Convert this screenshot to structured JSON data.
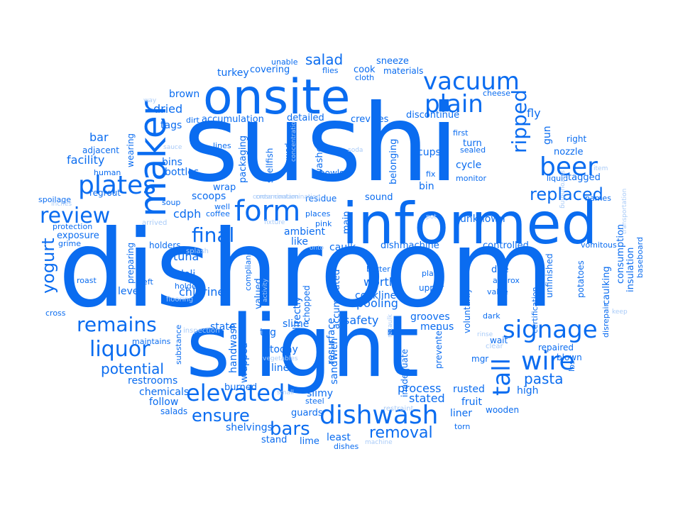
{
  "colors": {
    "primary": "#0a6cf0",
    "light": "#6aaaf6",
    "faint": "#a9cbf8"
  },
  "words": [
    "sushi",
    "dishroom",
    "slight",
    "informed",
    "onsite",
    "maker",
    "form",
    "beer",
    "plain",
    "vacuum",
    "plates",
    "review",
    "dishwash",
    "elevated",
    "signage",
    "wire",
    "liquor",
    "tall",
    "ripped",
    "remains",
    "replaced",
    "final",
    "bars",
    "ensure",
    "removal",
    "potential",
    "yogurt",
    "pasta",
    "salad",
    "dried",
    "tags",
    "bar",
    "facility",
    "bins",
    "bottles",
    "scoops",
    "cdph",
    "tuna",
    "deli",
    "chlorine",
    "level",
    "worth",
    "pooling",
    "cookline",
    "safety",
    "grooves",
    "menus",
    "today",
    "line",
    "process",
    "stated",
    "rusted",
    "fruit",
    "liner",
    "high",
    "wooden",
    "chemicals",
    "follow",
    "salads",
    "restrooms",
    "shelvings",
    "stand",
    "lime",
    "least",
    "dishes",
    "guards",
    "slimy",
    "steel",
    "burned",
    "handwash",
    "wrapped",
    "sandwich",
    "resurface",
    "tag",
    "slime",
    "state",
    "directly",
    "accumulated",
    "valued",
    "chopped",
    "ambient",
    "caulk",
    "like",
    "dishmachine",
    "controlled",
    "due",
    "approx",
    "valve",
    "upper",
    "plate",
    "better",
    "main",
    "places",
    "pink",
    "sound",
    "residue",
    "bowls",
    "unknown",
    "bin",
    "fix",
    "monitor",
    "cycle",
    "turn",
    "sealed",
    "first",
    "cups",
    "washer",
    "crevices",
    "discontinue",
    "detailed",
    "accumulation",
    "dirt",
    "wrap",
    "coffee",
    "soup",
    "packaging",
    "shellfish",
    "allowed",
    "belonging",
    "fly",
    "gun",
    "right",
    "nozzle",
    "tagged",
    "liquid",
    "names",
    "consumption",
    "insulation",
    "caulking",
    "potatoes",
    "vomitous",
    "baseboard",
    "unfinished",
    "certification",
    "voluntarily",
    "preventer",
    "inadequate",
    "mgr",
    "wait",
    "repaired",
    "blown",
    "lbs",
    "disrepair",
    "keep",
    "exposure",
    "grime",
    "holders",
    "preparing",
    "roast",
    "left",
    "cross",
    "maintains",
    "substance",
    "adjacent",
    "human",
    "spoilage",
    "regrout",
    "wearing",
    "brown",
    "covering",
    "turkey",
    "cook",
    "sneeze",
    "flies",
    "cloth",
    "materials",
    "cheese",
    "way",
    "sauce",
    "protection",
    "inches",
    "arrived",
    "splash",
    "holder",
    "flooring",
    "inspection",
    "activity",
    "compliance",
    "contamination",
    "fixture",
    "onto",
    "pot",
    "rinse",
    "surrounding",
    "item",
    "transportation",
    "clear",
    "small",
    "vegetables",
    "restraint",
    "recaulk",
    "dark",
    "torn",
    "machine",
    "lines",
    "soda",
    "concentration",
    "unable",
    "well",
    "cross contamination"
  ]
}
